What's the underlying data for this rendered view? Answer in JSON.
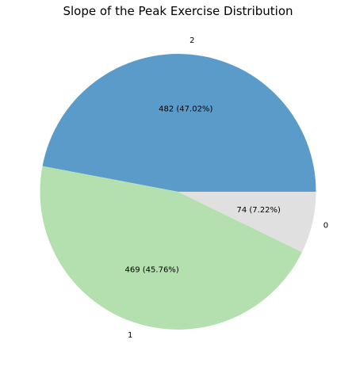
{
  "chart_data": {
    "type": "pie",
    "title": "Slope of the Peak Exercise Distribution",
    "slices": [
      {
        "label": "2",
        "value": 482,
        "percent_label": "482 (47.02%)",
        "color": "#5b9bc9"
      },
      {
        "label": "1",
        "value": 469,
        "percent_label": "469 (45.76%)",
        "color": "#b4e0b0"
      },
      {
        "label": "0",
        "value": 74,
        "percent_label": "74 (7.22%)",
        "color": "#e0e0e0"
      }
    ],
    "start_angle_deg": 0,
    "direction": "counterclockwise"
  }
}
